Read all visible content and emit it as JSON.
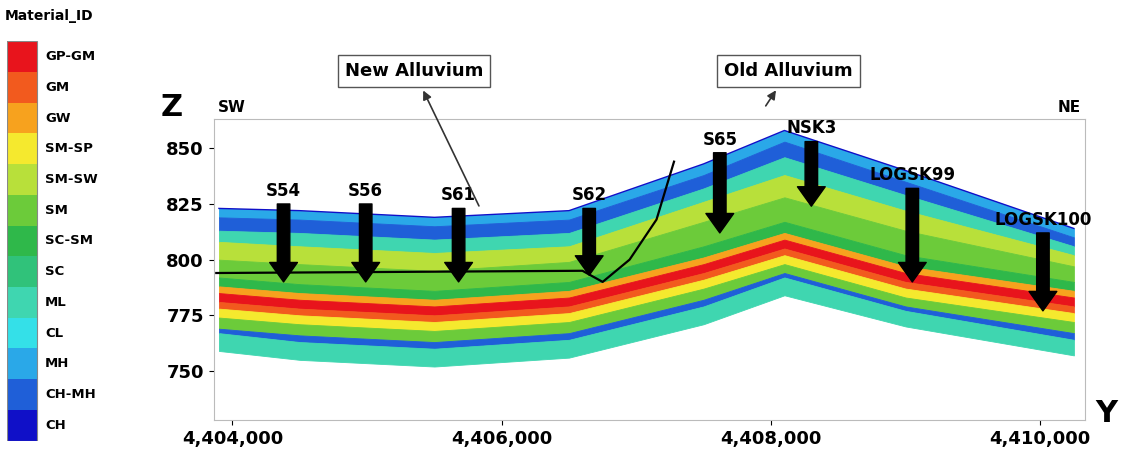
{
  "chart_data": {
    "type": "section",
    "x_label": "Y",
    "y_label": "Z",
    "directions": {
      "left": "SW",
      "right": "NE"
    },
    "xlim": [
      4403860,
      4410330
    ],
    "ylim": [
      728,
      863
    ],
    "xticks": [
      {
        "value": 4404000,
        "label": "4,404,000"
      },
      {
        "value": 4406000,
        "label": "4,406,000"
      },
      {
        "value": 4408000,
        "label": "4,408,000"
      },
      {
        "value": 4410000,
        "label": "4,410,000"
      }
    ],
    "yticks": [
      750,
      775,
      800,
      825,
      850
    ],
    "grid": false,
    "legend_title": "Material_ID",
    "materials": [
      {
        "name": "GP-GM",
        "color": "#e8141c"
      },
      {
        "name": "GM",
        "color": "#f25a1e"
      },
      {
        "name": "GW",
        "color": "#f7a21e"
      },
      {
        "name": "SM-SP",
        "color": "#f5e92e"
      },
      {
        "name": "SM-SW",
        "color": "#b8e03a"
      },
      {
        "name": "SM",
        "color": "#6ccb3a"
      },
      {
        "name": "SC-SM",
        "color": "#2fb84a"
      },
      {
        "name": "SC",
        "color": "#30c27a"
      },
      {
        "name": "ML",
        "color": "#3fd6b0"
      },
      {
        "name": "CL",
        "color": "#34e0e8"
      },
      {
        "name": "MH",
        "color": "#2aa8e8"
      },
      {
        "name": "CH-MH",
        "color": "#1f5fd8"
      },
      {
        "name": "CH",
        "color": "#1010c8"
      }
    ],
    "x": [
      4403900,
      4404500,
      4405500,
      4406500,
      4407500,
      4408100,
      4409000,
      4410250
    ],
    "surface": [
      823,
      822,
      819,
      822,
      843,
      858,
      840,
      814
    ],
    "layers": [
      {
        "material": "MH",
        "base": [
          819,
          818,
          815,
          818,
          838,
          853,
          835,
          810
        ]
      },
      {
        "material": "CH-MH",
        "base": [
          813,
          812,
          809,
          812,
          832,
          846,
          829,
          806
        ]
      },
      {
        "material": "ML",
        "base": [
          808,
          806,
          803,
          806,
          826,
          838,
          822,
          802
        ]
      },
      {
        "material": "SM-SW",
        "base": [
          800,
          798,
          795,
          799,
          817,
          828,
          813,
          797
        ]
      },
      {
        "material": "SM",
        "base": [
          792,
          789,
          786,
          790,
          806,
          817,
          802,
          790
        ]
      },
      {
        "material": "SC-SM",
        "base": [
          788,
          785,
          782,
          786,
          801,
          812,
          797,
          786
        ]
      },
      {
        "material": "GW",
        "base": [
          785,
          782,
          779,
          783,
          798,
          809,
          794,
          783
        ]
      },
      {
        "material": "GP-GM",
        "base": [
          781,
          778,
          775,
          779,
          794,
          805,
          790,
          779
        ]
      },
      {
        "material": "GM",
        "base": [
          778,
          775,
          772,
          776,
          791,
          802,
          787,
          776
        ]
      },
      {
        "material": "SM-SP",
        "base": [
          774,
          771,
          768,
          772,
          787,
          798,
          783,
          772
        ]
      },
      {
        "material": "SM",
        "base": [
          769,
          766,
          763,
          767,
          782,
          794,
          779,
          767
        ]
      },
      {
        "material": "CH-MH",
        "base": [
          767,
          763,
          760,
          764,
          779,
          792,
          777,
          764
        ]
      },
      {
        "material": "ML",
        "base": [
          759,
          755,
          752,
          756,
          771,
          784,
          770,
          757
        ]
      }
    ],
    "contact_line": {
      "x": [
        4403880,
        4406600,
        4406750,
        4406950,
        4407150,
        4407280
      ],
      "y": [
        794,
        795,
        790,
        800,
        818,
        844
      ]
    },
    "boreholes": [
      {
        "name": "S54",
        "x": 4404380,
        "top": 825,
        "bottom": 790
      },
      {
        "name": "S56",
        "x": 4404990,
        "top": 825,
        "bottom": 790
      },
      {
        "name": "S61",
        "x": 4405680,
        "top": 823,
        "bottom": 790
      },
      {
        "name": "S62",
        "x": 4406650,
        "top": 823,
        "bottom": 793
      },
      {
        "name": "S65",
        "x": 4407620,
        "top": 848,
        "bottom": 812
      },
      {
        "name": "NSK3",
        "x": 4408300,
        "top": 853,
        "bottom": 824
      },
      {
        "name": "LOGSK99",
        "x": 4409050,
        "top": 832,
        "bottom": 790
      },
      {
        "name": "LOGSK100",
        "x": 4410020,
        "top": 812,
        "bottom": 777
      }
    ],
    "annotations": [
      {
        "text": "New Alluvium",
        "x": 4405840,
        "y": 823
      },
      {
        "text": "Old Alluvium",
        "x": 4407950,
        "y": 868
      }
    ]
  }
}
